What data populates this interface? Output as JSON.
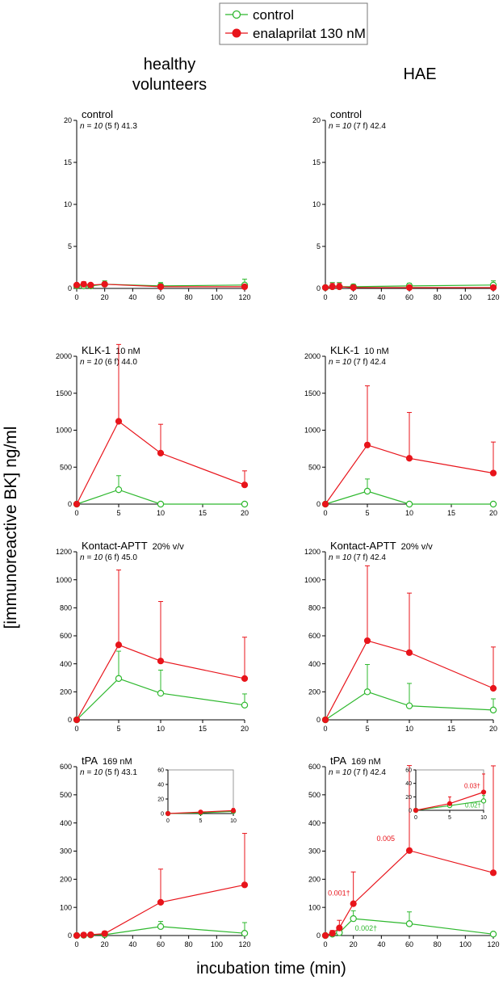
{
  "figure": {
    "legend": {
      "items": [
        {
          "label": "control",
          "color": "#2eb82e",
          "marker": "open-circle"
        },
        {
          "label": "enalaprilat 130 nM",
          "color": "#e8141b",
          "marker": "filled-circle"
        }
      ]
    },
    "column_titles": {
      "left": [
        "healthy",
        "volunteers"
      ],
      "right": [
        "HAE"
      ]
    },
    "y_axis_label": "[immunoreactive BK] ng/ml",
    "x_axis_label": "incubation time (min)"
  },
  "chart_data": [
    {
      "id": "p1",
      "type": "line",
      "title": "control",
      "title_unit": "",
      "subtitle": {
        "n": "n = 10",
        "rest": " (5 f) 41.3"
      },
      "xlim": [
        0,
        120
      ],
      "ylim": [
        0,
        20
      ],
      "xticks": [
        0,
        20,
        40,
        60,
        80,
        100,
        120
      ],
      "yticks": [
        0,
        5,
        10,
        15,
        20
      ],
      "series": [
        {
          "name": "control",
          "x": [
            0,
            5,
            10,
            20,
            60,
            120
          ],
          "y": [
            0.3,
            0.3,
            0.3,
            0.5,
            0.3,
            0.4
          ],
          "err": [
            0,
            0.3,
            0.3,
            0.4,
            0.4,
            0.7
          ]
        },
        {
          "name": "enalaprilat 130 nM",
          "x": [
            0,
            5,
            10,
            20,
            60,
            120
          ],
          "y": [
            0.4,
            0.5,
            0.4,
            0.5,
            0.2,
            0.2
          ],
          "err": [
            0,
            0.3,
            0.2,
            0.2,
            0.2,
            0.2
          ]
        }
      ]
    },
    {
      "id": "p2",
      "type": "line",
      "title": "control",
      "title_unit": "",
      "subtitle": {
        "n": "n = 10",
        "rest": " (7 f) 42.4"
      },
      "xlim": [
        0,
        120
      ],
      "ylim": [
        0,
        20
      ],
      "xticks": [
        0,
        20,
        40,
        60,
        80,
        100,
        120
      ],
      "yticks": [
        0,
        5,
        10,
        15,
        20
      ],
      "series": [
        {
          "name": "control",
          "x": [
            0,
            5,
            10,
            20,
            60,
            120
          ],
          "y": [
            0.1,
            0.2,
            0.2,
            0.2,
            0.3,
            0.4
          ],
          "err": [
            0,
            0.5,
            0.5,
            0.3,
            0.3,
            0.5
          ]
        },
        {
          "name": "enalaprilat 130 nM",
          "x": [
            0,
            5,
            10,
            20,
            60,
            120
          ],
          "y": [
            0.1,
            0.2,
            0.2,
            0.1,
            0.1,
            0.1
          ],
          "err": [
            0,
            0.4,
            0.4,
            0.3,
            0.2,
            0.2
          ]
        }
      ]
    },
    {
      "id": "p3",
      "type": "line",
      "title": "KLK-1",
      "title_unit": "10 nM",
      "subtitle": {
        "n": "n = 10",
        "rest": " (6 f) 44.0"
      },
      "xlim": [
        0,
        20
      ],
      "ylim": [
        0,
        2000
      ],
      "xticks": [
        0,
        5,
        10,
        15,
        20
      ],
      "yticks": [
        0,
        500,
        1000,
        1500,
        2000
      ],
      "series": [
        {
          "name": "control",
          "x": [
            0,
            5,
            10,
            20
          ],
          "y": [
            0,
            195,
            0,
            0
          ],
          "err": [
            0,
            190,
            0,
            0
          ]
        },
        {
          "name": "enalaprilat 130 nM",
          "x": [
            0,
            5,
            10,
            20
          ],
          "y": [
            0,
            1120,
            690,
            260
          ],
          "err": [
            0,
            1040,
            390,
            190
          ]
        }
      ]
    },
    {
      "id": "p4",
      "type": "line",
      "title": "KLK-1",
      "title_unit": "10 nM",
      "subtitle": {
        "n": "n = 10",
        "rest": " (7 f) 42.4"
      },
      "xlim": [
        0,
        20
      ],
      "ylim": [
        0,
        2000
      ],
      "xticks": [
        0,
        5,
        10,
        15,
        20
      ],
      "yticks": [
        0,
        500,
        1000,
        1500,
        2000
      ],
      "series": [
        {
          "name": "control",
          "x": [
            0,
            5,
            10,
            20
          ],
          "y": [
            0,
            175,
            0,
            0
          ],
          "err": [
            0,
            165,
            0,
            0
          ]
        },
        {
          "name": "enalaprilat 130 nM",
          "x": [
            0,
            5,
            10,
            20
          ],
          "y": [
            0,
            800,
            620,
            420
          ],
          "err": [
            0,
            800,
            620,
            420
          ]
        }
      ]
    },
    {
      "id": "p5",
      "type": "line",
      "title": "Kontact-APTT",
      "title_unit": "20% v/v",
      "subtitle": {
        "n": "n = 10",
        "rest": " (6 f) 45.0"
      },
      "xlim": [
        0,
        20
      ],
      "ylim": [
        0,
        1200
      ],
      "xticks": [
        0,
        5,
        10,
        15,
        20
      ],
      "yticks": [
        0,
        200,
        400,
        600,
        800,
        1000,
        1200
      ],
      "series": [
        {
          "name": "control",
          "x": [
            0,
            5,
            10,
            20
          ],
          "y": [
            0,
            295,
            190,
            105
          ],
          "err": [
            0,
            195,
            165,
            80
          ]
        },
        {
          "name": "enalaprilat 130 nM",
          "x": [
            0,
            5,
            10,
            20
          ],
          "y": [
            0,
            535,
            420,
            295
          ],
          "err": [
            0,
            535,
            425,
            295
          ]
        }
      ]
    },
    {
      "id": "p6",
      "type": "line",
      "title": "Kontact-APTT",
      "title_unit": "20% v/v",
      "subtitle": {
        "n": "n = 10",
        "rest": " (7 f) 42.4"
      },
      "xlim": [
        0,
        20
      ],
      "ylim": [
        0,
        1200
      ],
      "xticks": [
        0,
        5,
        10,
        15,
        20
      ],
      "yticks": [
        0,
        200,
        400,
        600,
        800,
        1000,
        1200
      ],
      "series": [
        {
          "name": "control",
          "x": [
            0,
            5,
            10,
            20
          ],
          "y": [
            0,
            200,
            100,
            70
          ],
          "err": [
            0,
            195,
            160,
            80
          ]
        },
        {
          "name": "enalaprilat 130 nM",
          "x": [
            0,
            5,
            10,
            20
          ],
          "y": [
            0,
            565,
            480,
            225
          ],
          "err": [
            0,
            535,
            425,
            295
          ]
        }
      ]
    },
    {
      "id": "p7",
      "type": "line",
      "title": "tPA",
      "title_unit": "169 nM",
      "subtitle": {
        "n": "n = 10",
        "rest": " (5 f) 43.1"
      },
      "xlim": [
        0,
        120
      ],
      "ylim": [
        0,
        600
      ],
      "xticks": [
        0,
        20,
        40,
        60,
        80,
        100,
        120
      ],
      "yticks": [
        0,
        100,
        200,
        300,
        400,
        500,
        600
      ],
      "series": [
        {
          "name": "control",
          "x": [
            0,
            5,
            10,
            20,
            60,
            120
          ],
          "y": [
            0,
            1,
            2,
            3,
            32,
            8
          ],
          "err": [
            0,
            2,
            3,
            5,
            18,
            38
          ]
        },
        {
          "name": "enalaprilat 130 nM",
          "x": [
            0,
            5,
            10,
            20,
            60,
            120
          ],
          "y": [
            0,
            2,
            3,
            7,
            118,
            180
          ],
          "err": [
            0,
            3,
            4,
            8,
            118,
            183
          ]
        }
      ],
      "inset": {
        "xlim": [
          0,
          10
        ],
        "ylim": [
          0,
          60
        ],
        "xticks": [
          0,
          5,
          10
        ],
        "yticks": [
          0,
          20,
          40,
          60
        ],
        "series": [
          {
            "name": "control",
            "x": [
              0,
              5,
              10
            ],
            "y": [
              0,
              1,
              3
            ],
            "err": [
              0,
              1.5,
              2
            ]
          },
          {
            "name": "enalaprilat 130 nM",
            "x": [
              0,
              5,
              10
            ],
            "y": [
              0,
              2,
              4
            ],
            "err": [
              0,
              1.5,
              3
            ]
          }
        ]
      }
    },
    {
      "id": "p8",
      "type": "line",
      "title": "tPA",
      "title_unit": "169 nM",
      "subtitle": {
        "n": "n = 10",
        "rest": " (7 f) 42.4"
      },
      "xlim": [
        0,
        120
      ],
      "ylim": [
        0,
        600
      ],
      "xticks": [
        0,
        20,
        40,
        60,
        80,
        100,
        120
      ],
      "yticks": [
        0,
        100,
        200,
        300,
        400,
        500,
        600
      ],
      "series": [
        {
          "name": "control",
          "x": [
            0,
            5,
            10,
            20,
            60,
            120
          ],
          "y": [
            0,
            5,
            10,
            60,
            42,
            5
          ],
          "err": [
            0,
            6,
            10,
            28,
            42,
            5
          ]
        },
        {
          "name": "enalaprilat 130 nM",
          "x": [
            0,
            5,
            10,
            20,
            60,
            120
          ],
          "y": [
            0,
            8,
            27,
            113,
            302,
            223
          ],
          "err": [
            0,
            10,
            27,
            113,
            302,
            380
          ]
        }
      ],
      "annotations": [
        {
          "text": "0.001†",
          "series": "enalaprilat 130 nM",
          "x": 20
        },
        {
          "text": "0.005",
          "series": "enalaprilat 130 nM",
          "x": 60
        },
        {
          "text": "0.002†",
          "series": "control",
          "x": 20
        }
      ],
      "inset": {
        "xlim": [
          0,
          10
        ],
        "ylim": [
          0,
          60
        ],
        "xticks": [
          0,
          5,
          10
        ],
        "yticks": [
          0,
          20,
          40,
          60
        ],
        "series": [
          {
            "name": "control",
            "x": [
              0,
              5,
              10
            ],
            "y": [
              0,
              7,
              14
            ],
            "err": [
              0,
              5,
              8
            ]
          },
          {
            "name": "enalaprilat 130 nM",
            "x": [
              0,
              5,
              10
            ],
            "y": [
              0,
              10,
              27
            ],
            "err": [
              0,
              10,
              27
            ]
          }
        ],
        "annotations": [
          {
            "text": "0.03†",
            "series": "enalaprilat 130 nM",
            "x": 10
          },
          {
            "text": "0.02†",
            "series": "control",
            "x": 10
          }
        ]
      }
    }
  ]
}
